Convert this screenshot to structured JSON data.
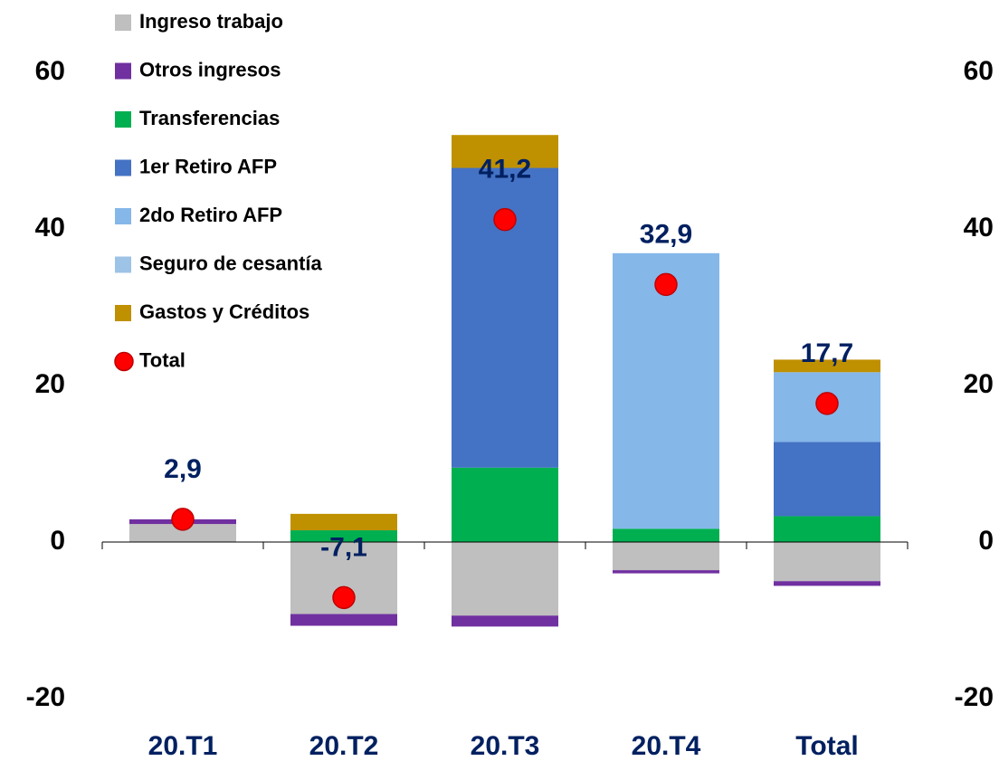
{
  "chart_data": {
    "type": "stacked-bar",
    "categories": [
      "20.T1",
      "20.T2",
      "20.T3",
      "20.T4",
      "Total"
    ],
    "series": [
      {
        "name": "Ingreso trabajo",
        "color": "#bfbfbf",
        "values": [
          2.3,
          -9.2,
          -9.4,
          -3.6,
          -5.0
        ]
      },
      {
        "name": "Otros ingresos",
        "color": "#7030a0",
        "values": [
          0.6,
          -1.5,
          -1.4,
          -0.4,
          -0.6
        ]
      },
      {
        "name": "Transferencias",
        "color": "#00b050",
        "values": [
          0,
          1.5,
          9.5,
          1.7,
          3.3
        ]
      },
      {
        "name": "1er Retiro AFP",
        "color": "#4472c4",
        "values": [
          0,
          0,
          38.3,
          0,
          9.5
        ]
      },
      {
        "name": "2do Retiro AFP",
        "color": "#85b7e9",
        "values": [
          0,
          0,
          0,
          35.2,
          8.9
        ]
      },
      {
        "name": "Seguro de cesantía",
        "color": "#9dc3e6",
        "values": [
          0,
          0,
          0,
          0,
          0
        ]
      },
      {
        "name": "Gastos y Créditos",
        "color": "#bf9000",
        "values": [
          0,
          2.1,
          4.2,
          0,
          1.6
        ]
      }
    ],
    "total": {
      "name": "Total",
      "color": "#ff0000",
      "values": [
        2.9,
        -7.1,
        41.2,
        32.9,
        17.7
      ],
      "value_labels": [
        "2,9",
        "-7,1",
        "41,2",
        "32,9",
        "17,7"
      ]
    },
    "ylim": [
      -20,
      60
    ],
    "yticks": [
      -20,
      0,
      20,
      40,
      60
    ],
    "y2lim": [
      -20,
      60
    ],
    "y2ticks": [
      -20,
      0,
      20,
      40,
      60
    ],
    "legend": "top-left"
  }
}
